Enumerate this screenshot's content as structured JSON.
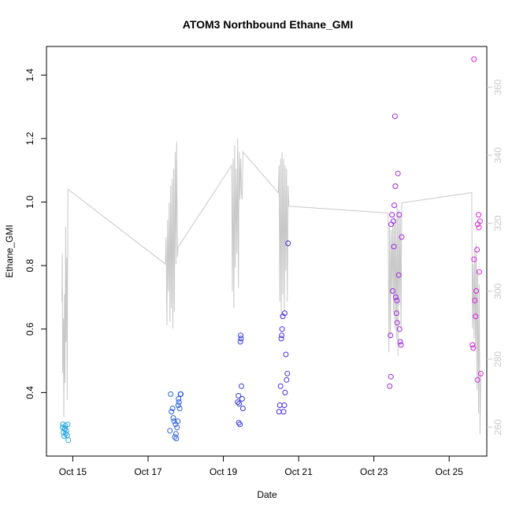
{
  "chart_data": {
    "type": "scatter",
    "title": "ATOM3 Northbound Ethane_GMI",
    "xlabel": "Date",
    "ylabel": "Ethane_GMI",
    "x_tick_labels": [
      "Oct 15",
      "Oct 17",
      "Oct 19",
      "Oct 21",
      "Oct 23",
      "Oct 25"
    ],
    "x_tick_values": [
      15,
      17,
      19,
      21,
      23,
      25
    ],
    "xlim": [
      14.3,
      26.0
    ],
    "ylim": [
      0.2,
      1.49
    ],
    "y_ticks": [
      "0.4",
      "0.6",
      "0.8",
      "1.0",
      "1.2",
      "1.4"
    ],
    "y_tick_values": [
      0.4,
      0.6,
      0.8,
      1.0,
      1.2,
      1.4
    ],
    "y2_ticks": [
      "260",
      "280",
      "300",
      "320",
      "340",
      "360"
    ],
    "y2_tick_values": [
      260,
      280,
      300,
      320,
      340,
      360
    ],
    "y2lim": [
      251.5,
      372.0
    ],
    "colors": {
      "scatter_start": "#29a8e0",
      "scatter_mid": "#3030e0",
      "scatter_end": "#e020e0",
      "line": "#c8c8c8",
      "right_axis": "#c8c8c8"
    },
    "points": [
      [
        14.73,
        0.29
      ],
      [
        14.75,
        0.275
      ],
      [
        14.77,
        0.263
      ],
      [
        14.78,
        0.285
      ],
      [
        14.8,
        0.295
      ],
      [
        14.81,
        0.27
      ],
      [
        14.83,
        0.28
      ],
      [
        14.85,
        0.265
      ],
      [
        14.86,
        0.3
      ],
      [
        14.88,
        0.25
      ],
      [
        14.74,
        0.3
      ],
      [
        14.79,
        0.285
      ],
      [
        17.58,
        0.28
      ],
      [
        17.62,
        0.34
      ],
      [
        17.65,
        0.35
      ],
      [
        17.67,
        0.32
      ],
      [
        17.69,
        0.31
      ],
      [
        17.71,
        0.26
      ],
      [
        17.73,
        0.3
      ],
      [
        17.75,
        0.255
      ],
      [
        17.77,
        0.29
      ],
      [
        17.79,
        0.31
      ],
      [
        17.8,
        0.36
      ],
      [
        17.82,
        0.37
      ],
      [
        17.84,
        0.35
      ],
      [
        17.86,
        0.395
      ],
      [
        17.87,
        0.395
      ],
      [
        17.6,
        0.395
      ],
      [
        17.74,
        0.27
      ],
      [
        17.81,
        0.38
      ],
      [
        19.38,
        0.37
      ],
      [
        19.4,
        0.39
      ],
      [
        19.42,
        0.365
      ],
      [
        19.44,
        0.3
      ],
      [
        19.46,
        0.58
      ],
      [
        19.47,
        0.57
      ],
      [
        19.48,
        0.42
      ],
      [
        19.5,
        0.38
      ],
      [
        19.52,
        0.35
      ],
      [
        19.45,
        0.56
      ],
      [
        19.41,
        0.305
      ],
      [
        20.48,
        0.34
      ],
      [
        20.5,
        0.36
      ],
      [
        20.52,
        0.42
      ],
      [
        20.54,
        0.57
      ],
      [
        20.56,
        0.6
      ],
      [
        20.58,
        0.64
      ],
      [
        20.6,
        0.34
      ],
      [
        20.62,
        0.36
      ],
      [
        20.64,
        0.4
      ],
      [
        20.66,
        0.52
      ],
      [
        20.68,
        0.44
      ],
      [
        20.7,
        0.46
      ],
      [
        20.72,
        0.87
      ],
      [
        20.55,
        0.58
      ],
      [
        20.63,
        0.65
      ],
      [
        23.42,
        0.42
      ],
      [
        23.44,
        0.58
      ],
      [
        23.46,
        0.93
      ],
      [
        23.48,
        0.96
      ],
      [
        23.5,
        0.72
      ],
      [
        23.52,
        0.94
      ],
      [
        23.54,
        0.99
      ],
      [
        23.56,
        1.27
      ],
      [
        23.58,
        0.7
      ],
      [
        23.6,
        0.65
      ],
      [
        23.62,
        0.62
      ],
      [
        23.64,
        1.09
      ],
      [
        23.66,
        0.77
      ],
      [
        23.68,
        0.6
      ],
      [
        23.7,
        0.56
      ],
      [
        23.72,
        0.55
      ],
      [
        23.74,
        0.89
      ],
      [
        23.45,
        0.45
      ],
      [
        23.53,
        0.86
      ],
      [
        23.57,
        1.05
      ],
      [
        23.61,
        0.69
      ],
      [
        23.67,
        0.96
      ],
      [
        25.62,
        0.55
      ],
      [
        25.64,
        0.54
      ],
      [
        25.66,
        0.82
      ],
      [
        25.68,
        0.69
      ],
      [
        25.7,
        0.64
      ],
      [
        25.72,
        0.72
      ],
      [
        25.74,
        0.85
      ],
      [
        25.76,
        0.93
      ],
      [
        25.78,
        0.96
      ],
      [
        25.8,
        0.78
      ],
      [
        25.82,
        0.94
      ],
      [
        25.84,
        0.46
      ],
      [
        25.66,
        1.45
      ],
      [
        25.75,
        0.44
      ],
      [
        25.79,
        0.92
      ]
    ],
    "line_y2": [
      [
        14.71,
        297
      ],
      [
        14.72,
        311
      ],
      [
        14.73,
        276
      ],
      [
        14.75,
        292
      ],
      [
        14.76,
        263
      ],
      [
        14.78,
        299
      ],
      [
        14.79,
        273
      ],
      [
        14.81,
        319
      ],
      [
        14.82,
        285
      ],
      [
        14.84,
        310
      ],
      [
        14.85,
        268
      ],
      [
        14.87,
        330
      ],
      [
        17.46,
        308
      ],
      [
        17.48,
        316
      ],
      [
        17.5,
        290
      ],
      [
        17.52,
        321
      ],
      [
        17.54,
        300
      ],
      [
        17.56,
        326
      ],
      [
        17.58,
        291
      ],
      [
        17.6,
        331
      ],
      [
        17.62,
        295
      ],
      [
        17.64,
        333
      ],
      [
        17.66,
        289
      ],
      [
        17.68,
        336
      ],
      [
        17.7,
        294
      ],
      [
        17.72,
        341
      ],
      [
        17.74,
        308
      ],
      [
        17.76,
        344
      ],
      [
        17.78,
        310
      ],
      [
        17.8,
        313
      ],
      [
        19.22,
        337
      ],
      [
        19.24,
        300
      ],
      [
        19.26,
        339
      ],
      [
        19.28,
        295
      ],
      [
        19.3,
        343
      ],
      [
        19.32,
        307
      ],
      [
        19.34,
        336
      ],
      [
        19.36,
        311
      ],
      [
        19.38,
        345
      ],
      [
        19.4,
        301
      ],
      [
        19.42,
        341
      ],
      [
        19.44,
        327
      ],
      [
        19.46,
        339
      ],
      [
        19.48,
        329
      ],
      [
        19.5,
        327
      ],
      [
        19.52,
        341
      ],
      [
        20.46,
        329
      ],
      [
        20.48,
        337
      ],
      [
        20.5,
        297
      ],
      [
        20.52,
        339
      ],
      [
        20.54,
        292
      ],
      [
        20.56,
        341
      ],
      [
        20.58,
        299
      ],
      [
        20.6,
        339
      ],
      [
        20.62,
        294
      ],
      [
        20.64,
        337
      ],
      [
        20.66,
        306
      ],
      [
        20.68,
        336
      ],
      [
        20.7,
        297
      ],
      [
        20.72,
        331
      ],
      [
        20.74,
        325
      ],
      [
        23.38,
        323
      ],
      [
        23.4,
        282
      ],
      [
        23.42,
        319
      ],
      [
        23.44,
        286
      ],
      [
        23.46,
        318
      ],
      [
        23.48,
        299
      ],
      [
        23.5,
        320
      ],
      [
        23.52,
        294
      ],
      [
        23.54,
        323
      ],
      [
        23.56,
        289
      ],
      [
        23.58,
        321
      ],
      [
        23.6,
        286
      ],
      [
        23.62,
        325
      ],
      [
        23.64,
        281
      ],
      [
        23.66,
        324
      ],
      [
        23.68,
        296
      ],
      [
        23.7,
        322
      ],
      [
        23.72,
        289
      ],
      [
        23.74,
        326
      ],
      [
        25.6,
        329
      ],
      [
        25.62,
        289
      ],
      [
        25.64,
        308
      ],
      [
        25.66,
        286
      ],
      [
        25.68,
        312
      ],
      [
        25.7,
        283
      ],
      [
        25.72,
        314
      ],
      [
        25.74,
        271
      ],
      [
        25.76,
        306
      ],
      [
        25.78,
        264
      ],
      [
        25.8,
        302
      ],
      [
        25.82,
        258
      ],
      [
        25.84,
        276
      ]
    ]
  }
}
